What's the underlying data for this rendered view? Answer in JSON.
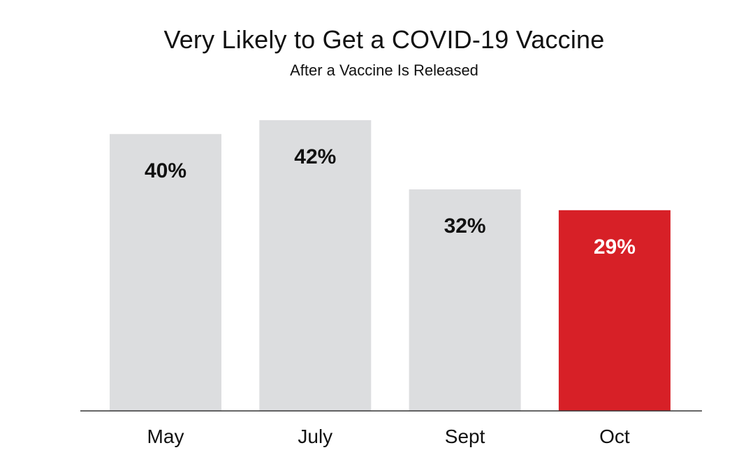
{
  "chart_data": {
    "type": "bar",
    "title": "Very Likely to Get a COVID-19 Vaccine",
    "subtitle": "After a Vaccine Is Released",
    "xlabel": "",
    "ylabel": "",
    "ylim": [
      0,
      42
    ],
    "grid": false,
    "legend": "none",
    "categories": [
      "May",
      "July",
      "Sept",
      "Oct"
    ],
    "values": [
      40,
      42,
      32,
      29
    ],
    "data_labels": [
      "40%",
      "42%",
      "32%",
      "29%"
    ],
    "highlight_index": 3,
    "colors": {
      "bar": "#dcdddf",
      "highlight": "#d72027",
      "label_dark": "#111111",
      "label_light": "#ffffff",
      "axis": "#333333"
    }
  }
}
